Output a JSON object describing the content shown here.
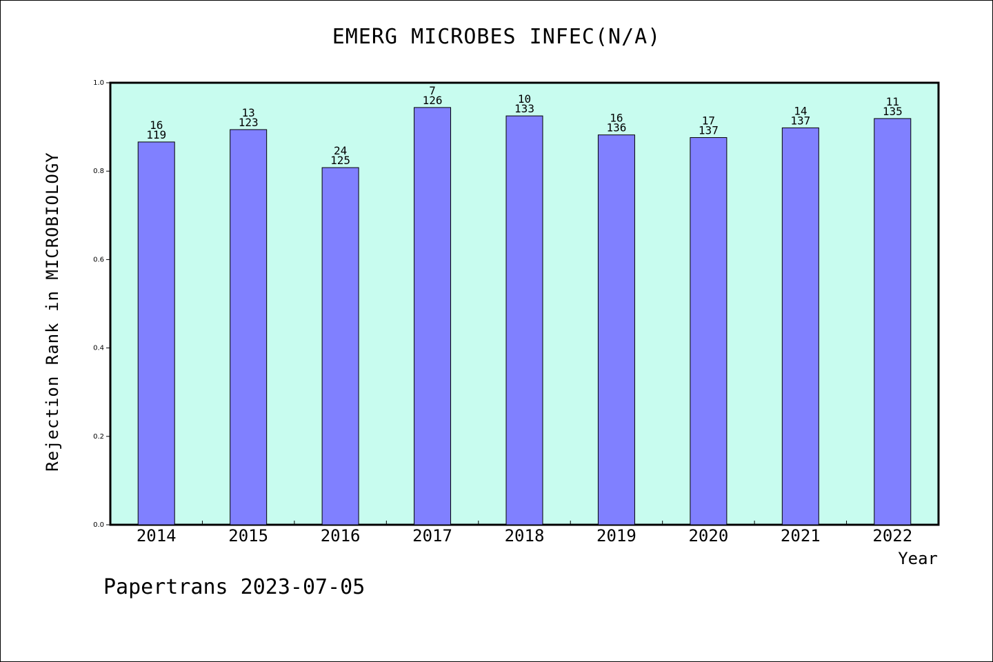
{
  "chart_data": {
    "type": "bar",
    "title": "EMERG MICROBES INFEC(N/A)",
    "xlabel": "Year",
    "ylabel": "Rejection Rank in MICROBIOLOGY",
    "categories": [
      "2014",
      "2015",
      "2016",
      "2017",
      "2018",
      "2019",
      "2020",
      "2021",
      "2022"
    ],
    "values": [
      0.866,
      0.894,
      0.808,
      0.944,
      0.925,
      0.882,
      0.876,
      0.898,
      0.919
    ],
    "label_top": [
      "16",
      "13",
      "24",
      "7",
      "10",
      "16",
      "17",
      "14",
      "11"
    ],
    "label_bottom": [
      "119",
      "123",
      "125",
      "126",
      "133",
      "136",
      "137",
      "137",
      "135"
    ],
    "yticks": [
      "0.0",
      "0.2",
      "0.4",
      "0.6",
      "0.8",
      "1.0"
    ],
    "ylim": [
      0,
      1
    ],
    "grid": false,
    "colors": {
      "plot_bg": "#c8fcef",
      "bar": "#8080ff",
      "axis": "#000000"
    }
  },
  "footer": "Papertrans 2023-07-05"
}
